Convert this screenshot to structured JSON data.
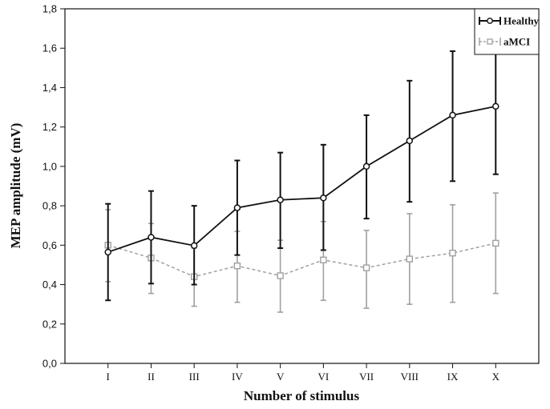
{
  "chart_data": {
    "type": "line",
    "title": "",
    "xlabel": "Number of stimulus",
    "ylabel": "MEP amplitude (mV)",
    "categories": [
      "I",
      "II",
      "III",
      "IV",
      "V",
      "VI",
      "VII",
      "VIII",
      "IX",
      "X"
    ],
    "ylim": [
      0,
      1.8
    ],
    "yticks": [
      "0,0",
      "0,2",
      "0,4",
      "0,6",
      "0,8",
      "1,0",
      "1,2",
      "1,4",
      "1,6",
      "1,8"
    ],
    "grid": false,
    "legend_position": "top-right",
    "error_bars": true,
    "series": [
      {
        "name": "Healthy",
        "color": "#111111",
        "line_style": "solid",
        "marker": "circle",
        "values": [
          0.565,
          0.64,
          0.598,
          0.79,
          0.83,
          0.84,
          1.0,
          1.13,
          1.26,
          1.305
        ],
        "lower": [
          0.32,
          0.405,
          0.4,
          0.55,
          0.585,
          0.575,
          0.735,
          0.82,
          0.925,
          0.96
        ],
        "upper": [
          0.81,
          0.875,
          0.8,
          1.03,
          1.07,
          1.11,
          1.26,
          1.435,
          1.585,
          1.645
        ]
      },
      {
        "name": "aMCI",
        "color": "#a0a0a0",
        "line_style": "dashed",
        "marker": "square",
        "values": [
          0.6,
          0.535,
          0.44,
          0.495,
          0.445,
          0.525,
          0.485,
          0.53,
          0.56,
          0.61
        ],
        "lower": [
          0.415,
          0.355,
          0.29,
          0.31,
          0.26,
          0.32,
          0.28,
          0.3,
          0.31,
          0.355
        ],
        "upper": [
          0.78,
          0.71,
          0.585,
          0.67,
          0.625,
          0.72,
          0.675,
          0.76,
          0.805,
          0.865
        ]
      }
    ]
  }
}
